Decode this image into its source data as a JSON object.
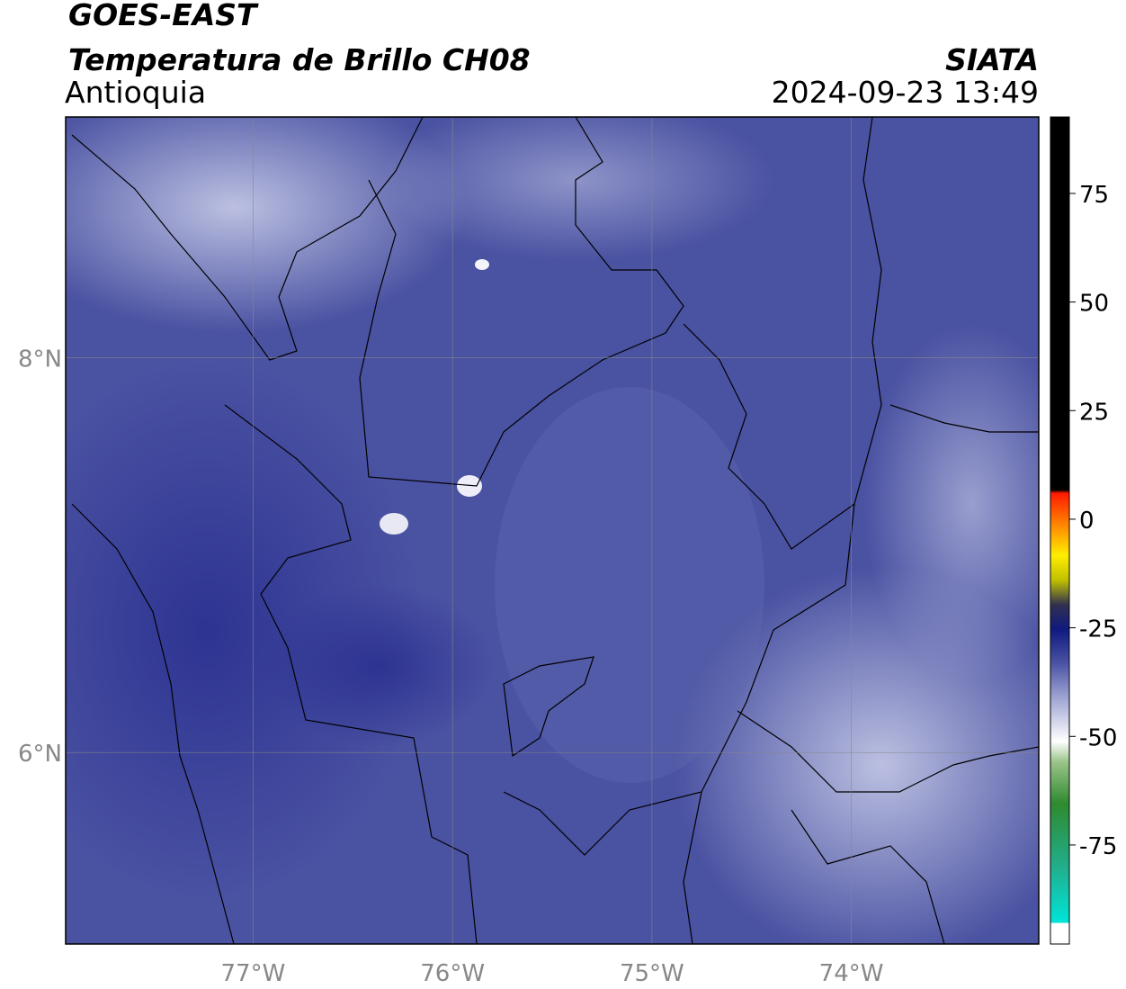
{
  "header": {
    "title": "GOES-EAST",
    "product": "Temperatura de Brillo CH08",
    "region": "Antioquia",
    "source": "SIATA",
    "timestamp": "2024-09-23 13:49"
  },
  "map": {
    "xlim": [
      -77.94,
      -73.06
    ],
    "ylim": [
      5.03,
      9.22
    ],
    "xticks": [
      {
        "value": -77,
        "label": "77°W"
      },
      {
        "value": -76,
        "label": "76°W"
      },
      {
        "value": -75,
        "label": "75°W"
      },
      {
        "value": -74,
        "label": "74°W"
      }
    ],
    "yticks": [
      {
        "value": 6,
        "label": "6°N"
      },
      {
        "value": 8,
        "label": "8°N"
      }
    ],
    "grid": true
  },
  "colorbar": {
    "lim": [
      -97.8,
      92.6
    ],
    "ticks": [
      75,
      50,
      25,
      0,
      -25,
      -50,
      -75
    ]
  }
}
